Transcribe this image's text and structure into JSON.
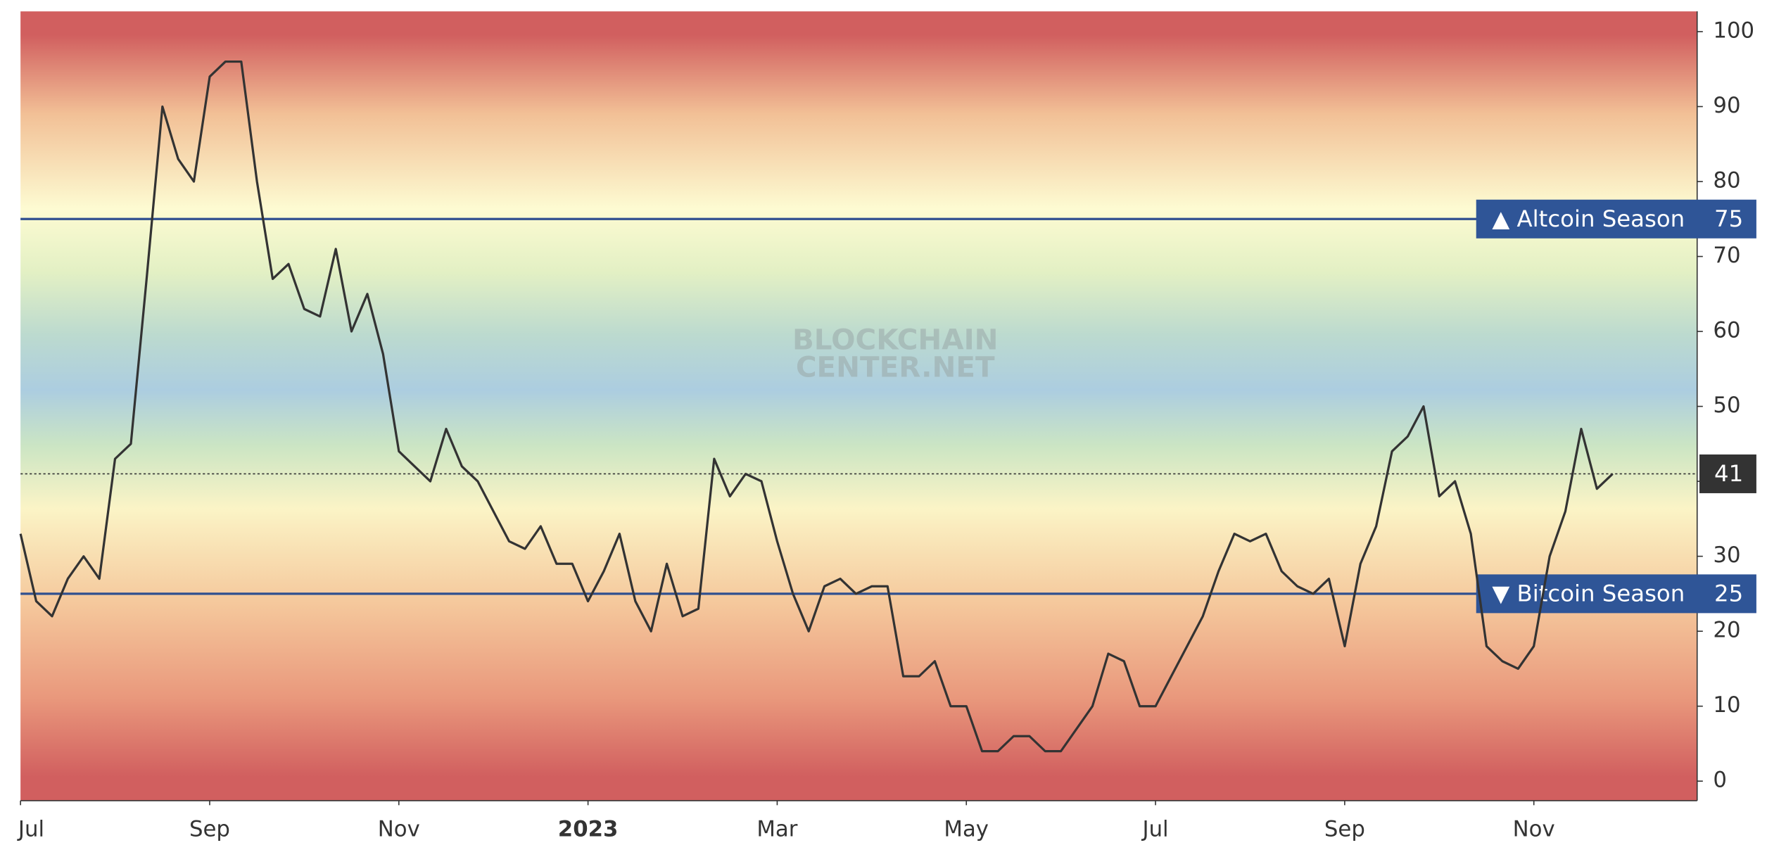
{
  "chart_data": {
    "type": "line",
    "categories": [
      "Jul",
      null,
      null,
      null,
      null,
      null,
      null,
      null,
      null,
      null,
      null,
      null,
      "Sep",
      null,
      null,
      null,
      null,
      null,
      null,
      null,
      null,
      null,
      null,
      null,
      "Nov",
      null,
      null,
      null,
      null,
      null,
      null,
      null,
      null,
      null,
      null,
      null,
      "2023",
      null,
      null,
      null,
      null,
      null,
      null,
      null,
      null,
      null,
      null,
      null,
      "Mar",
      null,
      null,
      null,
      null,
      null,
      null,
      null,
      null,
      null,
      null,
      null,
      "May",
      null,
      null,
      null,
      null,
      null,
      null,
      null,
      null,
      null,
      null,
      null,
      "Jul",
      null,
      null,
      null,
      null,
      null,
      null,
      null,
      null,
      null,
      null,
      null,
      "Sep",
      null,
      null,
      null,
      null,
      null,
      null,
      null,
      null,
      null,
      null,
      null,
      "Nov",
      null,
      null,
      null,
      null,
      null
    ],
    "values": [
      33,
      24,
      22,
      27,
      30,
      27,
      43,
      45,
      67,
      90,
      83,
      80,
      94,
      96,
      96,
      80,
      67,
      69,
      63,
      62,
      71,
      60,
      65,
      57,
      44,
      42,
      40,
      47,
      42,
      40,
      36,
      32,
      31,
      34,
      29,
      29,
      24,
      28,
      33,
      24,
      20,
      29,
      22,
      23,
      43,
      38,
      41,
      40,
      32,
      25,
      20,
      26,
      27,
      25,
      26,
      26,
      14,
      14,
      16,
      10,
      10,
      4,
      4,
      6,
      6,
      4,
      4,
      7,
      10,
      17,
      16,
      10,
      10,
      14,
      18,
      22,
      28,
      33,
      32,
      33,
      28,
      26,
      25,
      27,
      18,
      29,
      34,
      44,
      46,
      50,
      38,
      40,
      33,
      18,
      16,
      15,
      18,
      30,
      36,
      47,
      39,
      41
    ],
    "color": "#333333",
    "ylim": [
      -2.6,
      102.7
    ],
    "yticks": [
      0,
      10,
      20,
      30,
      40,
      50,
      60,
      70,
      80,
      90,
      100
    ],
    "thresholds": [
      {
        "label": "▲ Altcoin Season",
        "value": 75
      },
      {
        "label": "▼ Bitcoin Season",
        "value": 25
      }
    ],
    "watermark": [
      "BLOCKCHAIN",
      "CENTER.NET"
    ]
  }
}
